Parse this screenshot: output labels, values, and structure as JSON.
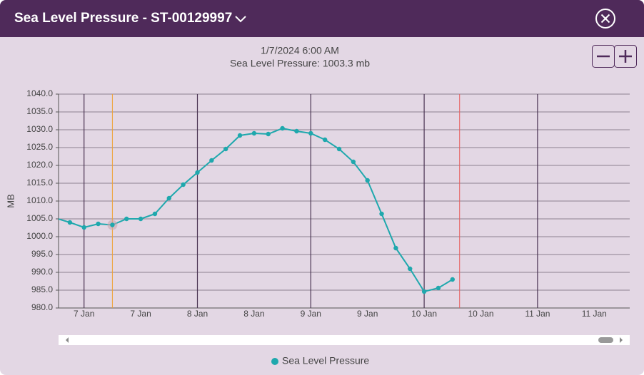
{
  "header": {
    "title": "Sea Level Pressure - ST-00129997"
  },
  "tooltip": {
    "time": "1/7/2024 6:00 AM",
    "text": "Sea Level Pressure: 1003.3 mb"
  },
  "chart_data": {
    "type": "line",
    "ylabel": "MB",
    "categories": [
      null,
      null,
      "7 Jan",
      null,
      null,
      null,
      "7 Jan",
      null,
      null,
      null,
      "8 Jan",
      null,
      null,
      null,
      "8 Jan",
      null,
      null,
      null,
      "9 Jan",
      null,
      null,
      null,
      "9 Jan",
      null,
      null,
      null,
      "10 Jan",
      null,
      null,
      null,
      "10 Jan",
      null,
      null,
      null,
      "11 Jan",
      null,
      null,
      null,
      "11 Jan",
      null,
      null
    ],
    "series": [
      {
        "name": "Sea Level Pressure",
        "color": "#1fa8ad",
        "values": [
          1005.2,
          1004.0,
          1002.6,
          1003.6,
          1003.3,
          1005.0,
          1005.0,
          1006.4,
          1010.8,
          1014.6,
          1018.0,
          1021.4,
          1024.6,
          1028.4,
          1029.0,
          1028.8,
          1030.4,
          1029.6,
          1029.0,
          1027.2,
          1024.6,
          1021.0,
          1015.8,
          1006.4,
          996.8,
          991.0,
          984.6,
          985.6,
          988.0,
          null,
          null,
          null,
          null,
          null,
          null,
          null,
          null,
          null,
          null,
          null,
          null
        ]
      }
    ],
    "ylim": [
      980,
      1040
    ],
    "yticks": [
      {
        "value": 980,
        "label": "980.0"
      },
      {
        "value": 985,
        "label": "985.0"
      },
      {
        "value": 990,
        "label": "990.0"
      },
      {
        "value": 995,
        "label": "995.0"
      },
      {
        "value": 1000,
        "label": "1000.0"
      },
      {
        "value": 1005,
        "label": "1005.0"
      },
      {
        "value": 1010,
        "label": "1010.0"
      },
      {
        "value": 1015,
        "label": "1015.0"
      },
      {
        "value": 1020,
        "label": "1020.0"
      },
      {
        "value": 1025,
        "label": "1025.0"
      },
      {
        "value": 1030,
        "label": "1030.0"
      },
      {
        "value": 1035,
        "label": "1035.0"
      },
      {
        "value": 1040,
        "label": "1040.0"
      }
    ],
    "grid": true,
    "selected_index": 4,
    "now_index": 28.5,
    "legend": "bottom"
  }
}
